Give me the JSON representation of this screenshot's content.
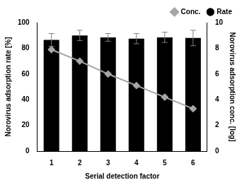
{
  "chart_data": {
    "type": "bar",
    "categories": [
      "1",
      "2",
      "3",
      "4",
      "5",
      "6"
    ],
    "x_label": "Serial detection factor",
    "y_label": "Norovirus adsorption rate [%]",
    "y2_label": "Norovirus adsorption conc. [log]",
    "ylim": [
      0,
      100
    ],
    "yticks": [
      0,
      20,
      40,
      60,
      80,
      100
    ],
    "y2lim": [
      0,
      10
    ],
    "y2ticks": [
      0,
      2,
      4,
      6,
      8,
      10
    ],
    "grid": false,
    "legend": "top right",
    "series": [
      {
        "name": "Rate",
        "type": "bar",
        "color": "#000000",
        "values": [
          86.5,
          90,
          88.5,
          87.5,
          88.5,
          88
        ],
        "errors": [
          5,
          4,
          3,
          4,
          4,
          6
        ]
      },
      {
        "name": "Conc.",
        "type": "line",
        "axis": "y2",
        "color": "#a6a6a6",
        "marker": "diamond",
        "line_style": "solid",
        "values": [
          7.9,
          7.0,
          6.0,
          5.1,
          4.2,
          3.3
        ]
      }
    ]
  }
}
